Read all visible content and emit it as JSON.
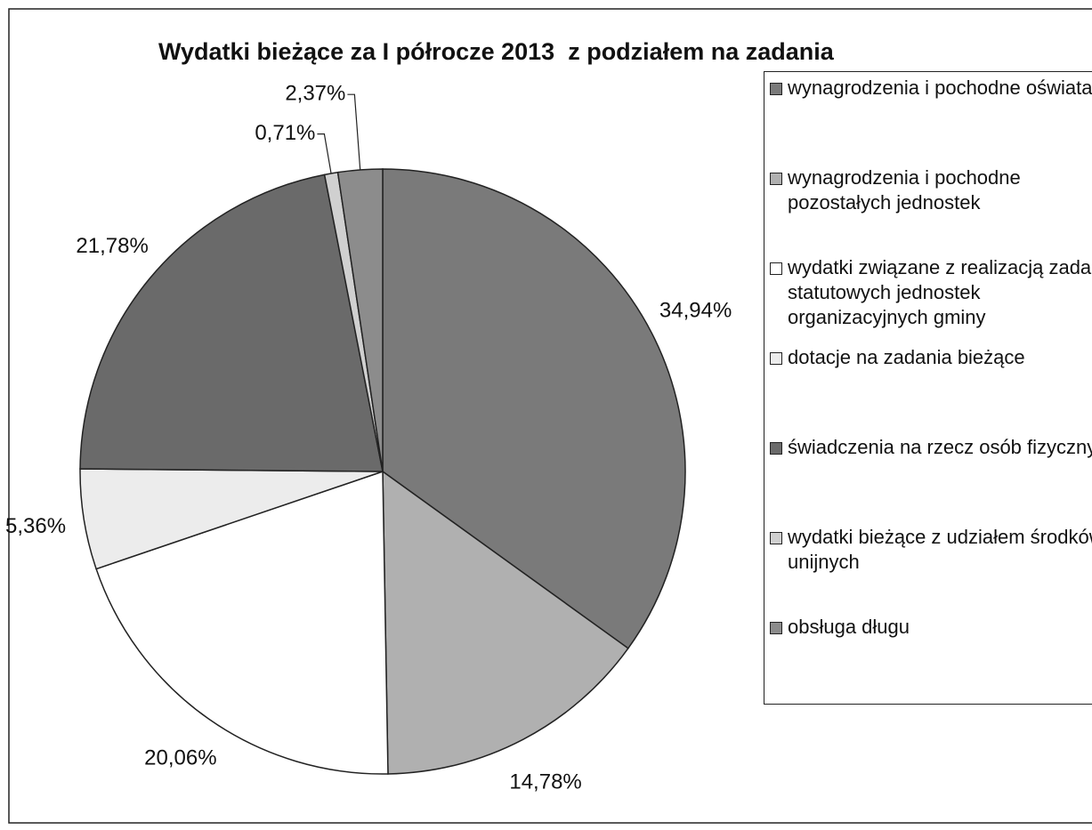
{
  "chart_data": {
    "type": "pie",
    "title": "Wydatki bieżące za I półrocze 2013  z podziałem na zadania",
    "categories": [
      "wynagrodzenia i pochodne oświata",
      "wynagrodzenia i pochodne pozostałych jednostek",
      "wydatki związane z realizacją zadań statutowych jednostek organizacyjnych gminy",
      "dotacje na zadania bieżące",
      "świadczenia na rzecz osób fizycznych",
      "wydatki bieżące z udziałem środków unijnych",
      "obsługa długu"
    ],
    "values": [
      34.94,
      14.78,
      20.06,
      5.36,
      21.78,
      0.71,
      2.37
    ],
    "value_labels": [
      "34,94%",
      "14,78%",
      "20,06%",
      "5,36%",
      "21,78%",
      "0,71%",
      "2,37%"
    ],
    "colors": [
      "#7a7a7a",
      "#b0b0b0",
      "#ffffff",
      "#ececec",
      "#6a6a6a",
      "#d0d0d0",
      "#8c8c8c"
    ],
    "legend": "right"
  }
}
